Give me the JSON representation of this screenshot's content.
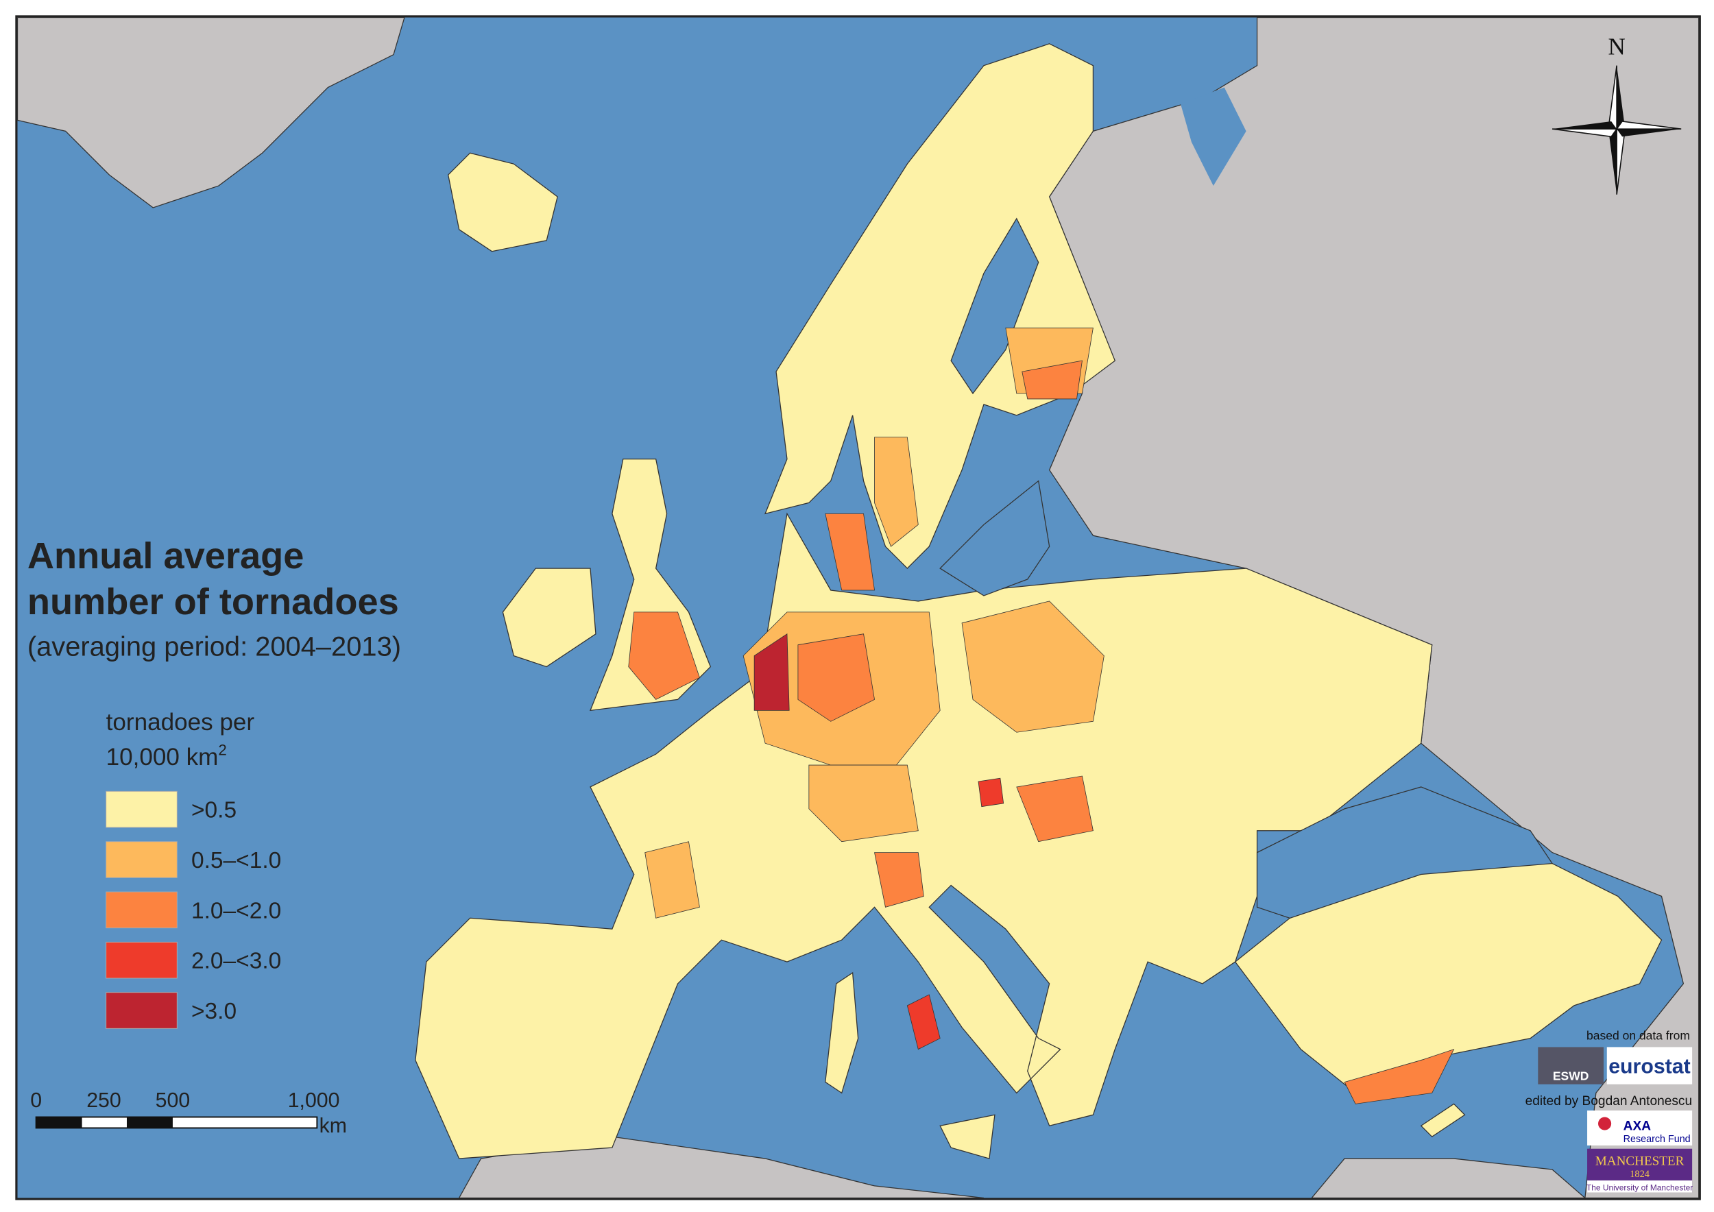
{
  "map": {
    "title_line1": "Annual average",
    "title_line2": "number of tornadoes",
    "subtitle": "(averaging period: 2004–2013)",
    "legend": {
      "unit_line1": "tornadoes per",
      "unit_line2": "10,000 km",
      "unit_superscript": "2",
      "items": [
        {
          "label": ">0.5",
          "color": "#fdf2a7"
        },
        {
          "label": "0.5–<1.0",
          "color": "#fdb95c"
        },
        {
          "label": "1.0–<2.0",
          "color": "#fc8340"
        },
        {
          "label": "2.0–<3.0",
          "color": "#ee3b2b"
        },
        {
          "label": ">3.0",
          "color": "#bd2430"
        }
      ]
    },
    "scale_bar": {
      "labels": [
        "0",
        "250",
        "500",
        "1,000"
      ],
      "unit": "km"
    },
    "north": "N",
    "credits": {
      "based_on": "based on data from",
      "eswd": "ESWD",
      "eurostat": "eurostat",
      "edited_by": "edited by Bogdan Antonescu",
      "axa": "AXA",
      "axa_sub": "Research Fund",
      "manchester": "MANCHESTER",
      "year": "1824",
      "university": "The University of Manchester"
    }
  }
}
